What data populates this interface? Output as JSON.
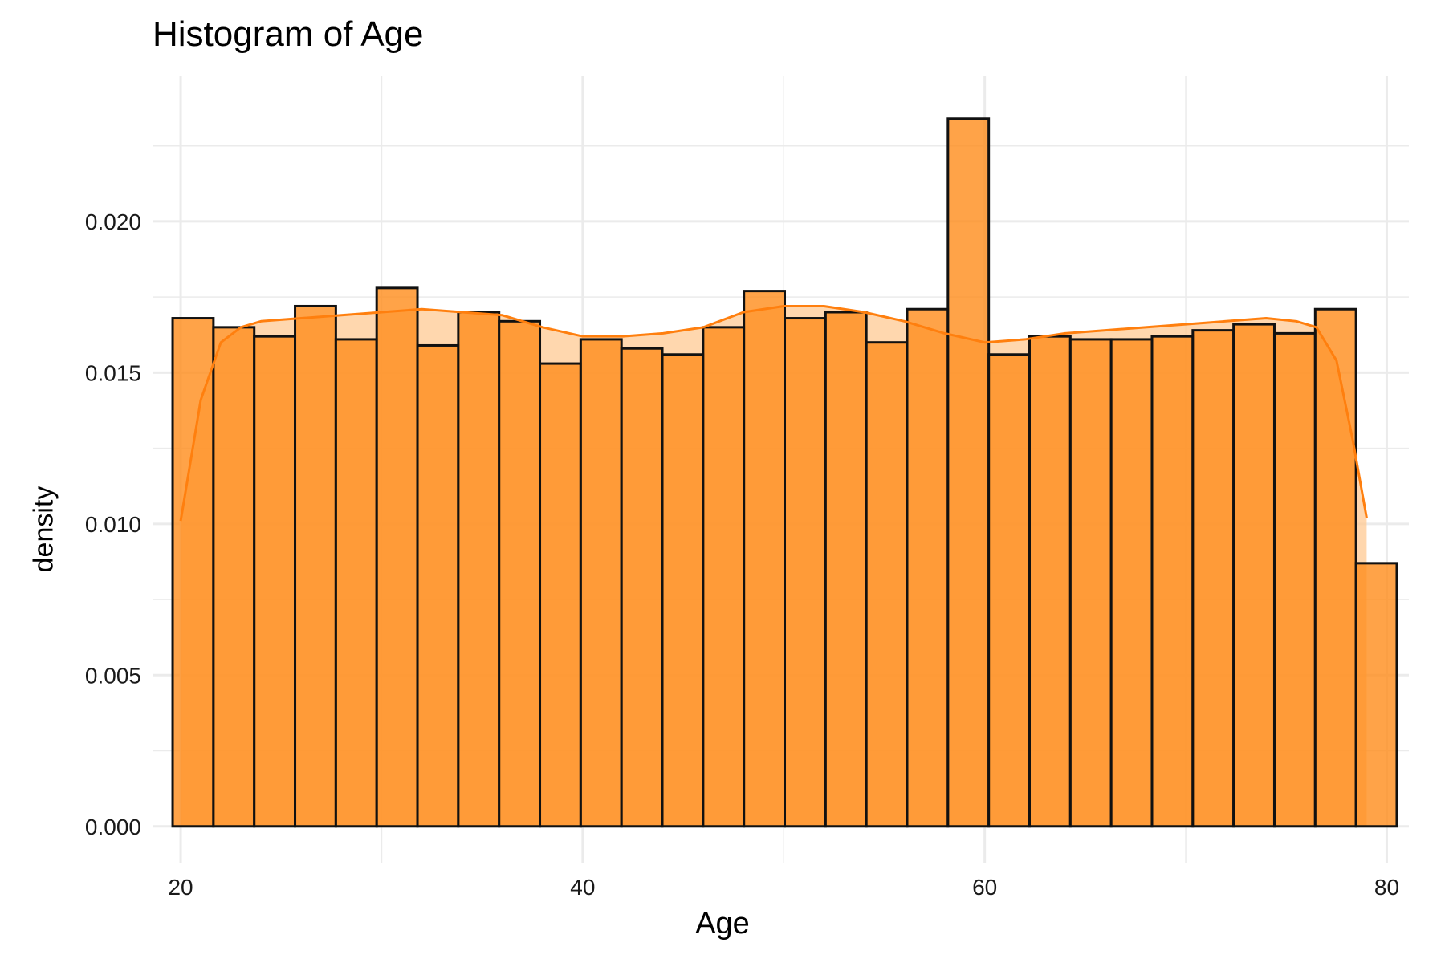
{
  "chart_data": {
    "type": "bar",
    "title": "Histogram of Age",
    "xlabel": "Age",
    "ylabel": "density",
    "xlim": [
      18.6,
      81.1
    ],
    "ylim": [
      -0.0012,
      0.0248
    ],
    "x_ticks": [
      "20",
      "40",
      "60",
      "80"
    ],
    "y_ticks": [
      "0.000",
      "0.005",
      "0.010",
      "0.015",
      "0.020"
    ],
    "grid": true,
    "bin_width": 2.03,
    "bins": [
      {
        "x0": 19.6,
        "density": 0.0168
      },
      {
        "x0": 21.63,
        "density": 0.0165
      },
      {
        "x0": 23.66,
        "density": 0.0162
      },
      {
        "x0": 25.69,
        "density": 0.0172
      },
      {
        "x0": 27.72,
        "density": 0.0161
      },
      {
        "x0": 29.75,
        "density": 0.0178
      },
      {
        "x0": 31.78,
        "density": 0.0159
      },
      {
        "x0": 33.81,
        "density": 0.017
      },
      {
        "x0": 35.84,
        "density": 0.0167
      },
      {
        "x0": 37.87,
        "density": 0.0153
      },
      {
        "x0": 39.9,
        "density": 0.0161
      },
      {
        "x0": 41.93,
        "density": 0.0158
      },
      {
        "x0": 43.96,
        "density": 0.0156
      },
      {
        "x0": 45.99,
        "density": 0.0165
      },
      {
        "x0": 48.02,
        "density": 0.0177
      },
      {
        "x0": 50.05,
        "density": 0.0168
      },
      {
        "x0": 52.08,
        "density": 0.017
      },
      {
        "x0": 54.11,
        "density": 0.016
      },
      {
        "x0": 56.14,
        "density": 0.0171
      },
      {
        "x0": 58.17,
        "density": 0.0234
      },
      {
        "x0": 60.2,
        "density": 0.0156
      },
      {
        "x0": 62.23,
        "density": 0.0162
      },
      {
        "x0": 64.26,
        "density": 0.0161
      },
      {
        "x0": 66.29,
        "density": 0.0161
      },
      {
        "x0": 68.32,
        "density": 0.0162
      },
      {
        "x0": 70.35,
        "density": 0.0164
      },
      {
        "x0": 72.38,
        "density": 0.0166
      },
      {
        "x0": 74.41,
        "density": 0.0163
      },
      {
        "x0": 76.44,
        "density": 0.0171
      },
      {
        "x0": 78.47,
        "density": 0.0087
      }
    ],
    "density_curve": [
      [
        20.0,
        0.0101
      ],
      [
        21.0,
        0.0141
      ],
      [
        22.0,
        0.016
      ],
      [
        23.0,
        0.0165
      ],
      [
        24.0,
        0.0167
      ],
      [
        26.0,
        0.0168
      ],
      [
        28.0,
        0.0169
      ],
      [
        30.0,
        0.017
      ],
      [
        32.0,
        0.0171
      ],
      [
        34.0,
        0.017
      ],
      [
        36.0,
        0.0169
      ],
      [
        38.0,
        0.0165
      ],
      [
        40.0,
        0.0162
      ],
      [
        42.0,
        0.0162
      ],
      [
        44.0,
        0.0163
      ],
      [
        46.0,
        0.0165
      ],
      [
        48.0,
        0.017
      ],
      [
        50.0,
        0.0172
      ],
      [
        52.0,
        0.0172
      ],
      [
        54.0,
        0.017
      ],
      [
        56.0,
        0.0167
      ],
      [
        58.0,
        0.0163
      ],
      [
        60.0,
        0.016
      ],
      [
        62.0,
        0.0161
      ],
      [
        64.0,
        0.0163
      ],
      [
        66.0,
        0.0164
      ],
      [
        68.0,
        0.0165
      ],
      [
        70.0,
        0.0166
      ],
      [
        72.0,
        0.0167
      ],
      [
        74.0,
        0.0168
      ],
      [
        75.5,
        0.0167
      ],
      [
        76.5,
        0.0165
      ],
      [
        77.5,
        0.0154
      ],
      [
        78.3,
        0.0128
      ],
      [
        79.0,
        0.0102
      ]
    ],
    "colors": {
      "bar_fill": "#ff8c1a",
      "bar_stroke": "#111111",
      "curve": "#ff7f0e",
      "curve_fill": "#ffc993",
      "grid": "#ebebeb"
    }
  }
}
